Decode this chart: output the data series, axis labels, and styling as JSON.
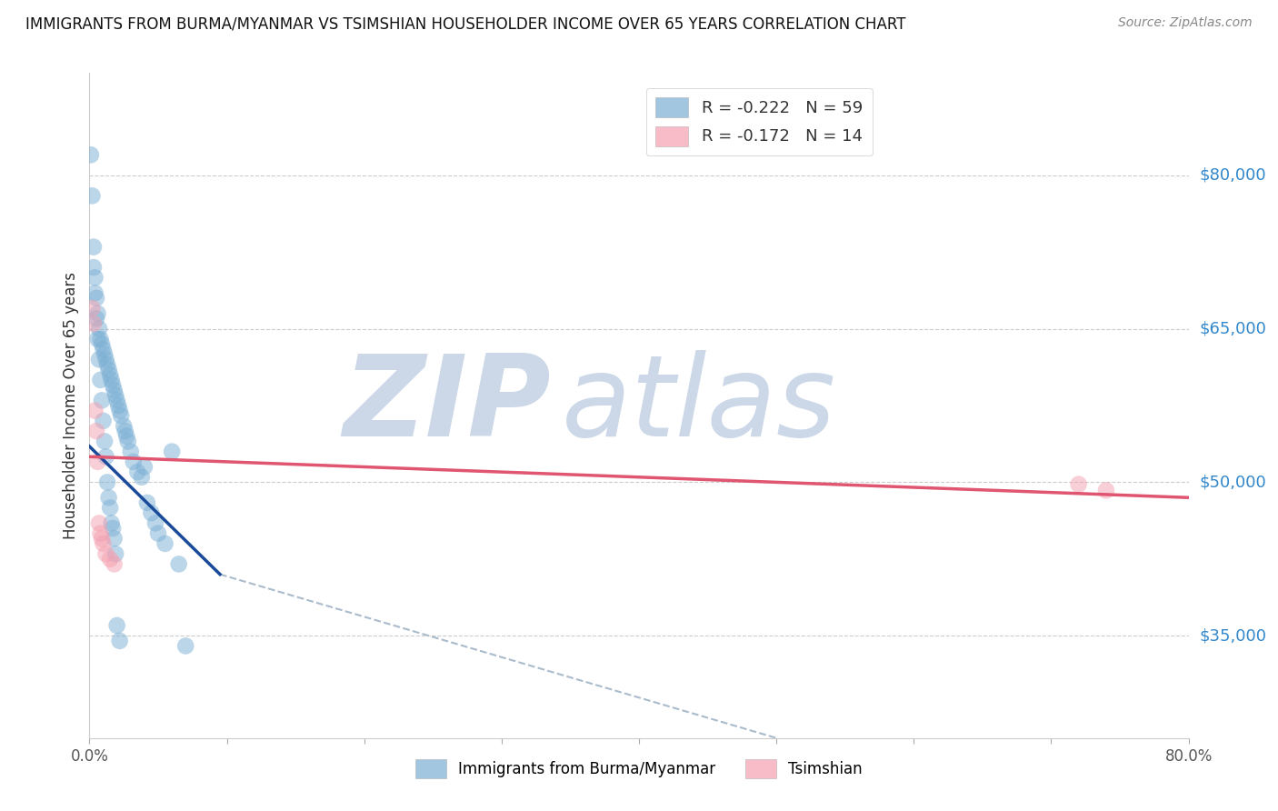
{
  "title": "IMMIGRANTS FROM BURMA/MYANMAR VS TSIMSHIAN HOUSEHOLDER INCOME OVER 65 YEARS CORRELATION CHART",
  "source": "Source: ZipAtlas.com",
  "ylabel": "Householder Income Over 65 years",
  "right_yticks": [
    35000,
    50000,
    65000,
    80000
  ],
  "right_ytick_labels": [
    "$35,000",
    "$50,000",
    "$65,000",
    "$80,000"
  ],
  "xlim": [
    0.0,
    0.8
  ],
  "ylim": [
    25000,
    90000
  ],
  "xtick_positions": [
    0.0,
    0.1,
    0.2,
    0.3,
    0.4,
    0.5,
    0.6,
    0.7,
    0.8
  ],
  "xtick_labels": [
    "0.0%",
    "",
    "",
    "",
    "",
    "",
    "",
    "",
    "80.0%"
  ],
  "blue_R": -0.222,
  "blue_N": 59,
  "pink_R": -0.172,
  "pink_N": 14,
  "blue_color": "#7bafd4",
  "pink_color": "#f4a0b0",
  "blue_line_color": "#1a4a9a",
  "pink_line_color": "#e05570",
  "dashed_line_color": "#aabbcc",
  "watermark_top": "ZIP",
  "watermark_bottom": "atlas",
  "watermark_color": "#ccd8e8",
  "legend_label_blue": "Immigrants from Burma/Myanmar",
  "legend_label_pink": "Tsimshian",
  "blue_scatter_x": [
    0.001,
    0.002,
    0.003,
    0.004,
    0.005,
    0.006,
    0.007,
    0.008,
    0.009,
    0.01,
    0.011,
    0.012,
    0.013,
    0.014,
    0.015,
    0.016,
    0.017,
    0.018,
    0.019,
    0.02,
    0.021,
    0.022,
    0.023,
    0.025,
    0.026,
    0.027,
    0.028,
    0.03,
    0.032,
    0.035,
    0.038,
    0.04,
    0.042,
    0.045,
    0.048,
    0.05,
    0.055,
    0.06,
    0.065,
    0.07,
    0.003,
    0.004,
    0.005,
    0.006,
    0.007,
    0.008,
    0.009,
    0.01,
    0.011,
    0.012,
    0.013,
    0.014,
    0.015,
    0.016,
    0.017,
    0.018,
    0.019,
    0.02,
    0.022
  ],
  "blue_scatter_y": [
    82000,
    78000,
    73000,
    70000,
    68000,
    66500,
    65000,
    64000,
    63500,
    63000,
    62500,
    62000,
    61500,
    61000,
    60500,
    60000,
    59500,
    59000,
    58500,
    58000,
    57500,
    57000,
    56500,
    55500,
    55000,
    54500,
    54000,
    53000,
    52000,
    51000,
    50500,
    51500,
    48000,
    47000,
    46000,
    45000,
    44000,
    53000,
    42000,
    34000,
    71000,
    68500,
    66000,
    64000,
    62000,
    60000,
    58000,
    56000,
    54000,
    52500,
    50000,
    48500,
    47500,
    46000,
    45500,
    44500,
    43000,
    36000,
    34500
  ],
  "pink_scatter_x": [
    0.002,
    0.003,
    0.004,
    0.005,
    0.006,
    0.007,
    0.008,
    0.009,
    0.01,
    0.012,
    0.015,
    0.018,
    0.72,
    0.74
  ],
  "pink_scatter_y": [
    67000,
    65500,
    57000,
    55000,
    52000,
    46000,
    45000,
    44500,
    44000,
    43000,
    42500,
    42000,
    49800,
    49200
  ],
  "blue_line_x0": 0.0,
  "blue_line_y0": 53500,
  "blue_line_x1": 0.095,
  "blue_line_y1": 41000,
  "pink_line_x0": 0.0,
  "pink_line_y0": 52500,
  "pink_line_x1": 0.8,
  "pink_line_y1": 48500,
  "dashed_line_x0": 0.095,
  "dashed_line_y0": 41000,
  "dashed_line_x1": 0.5,
  "dashed_line_y1": 25000
}
